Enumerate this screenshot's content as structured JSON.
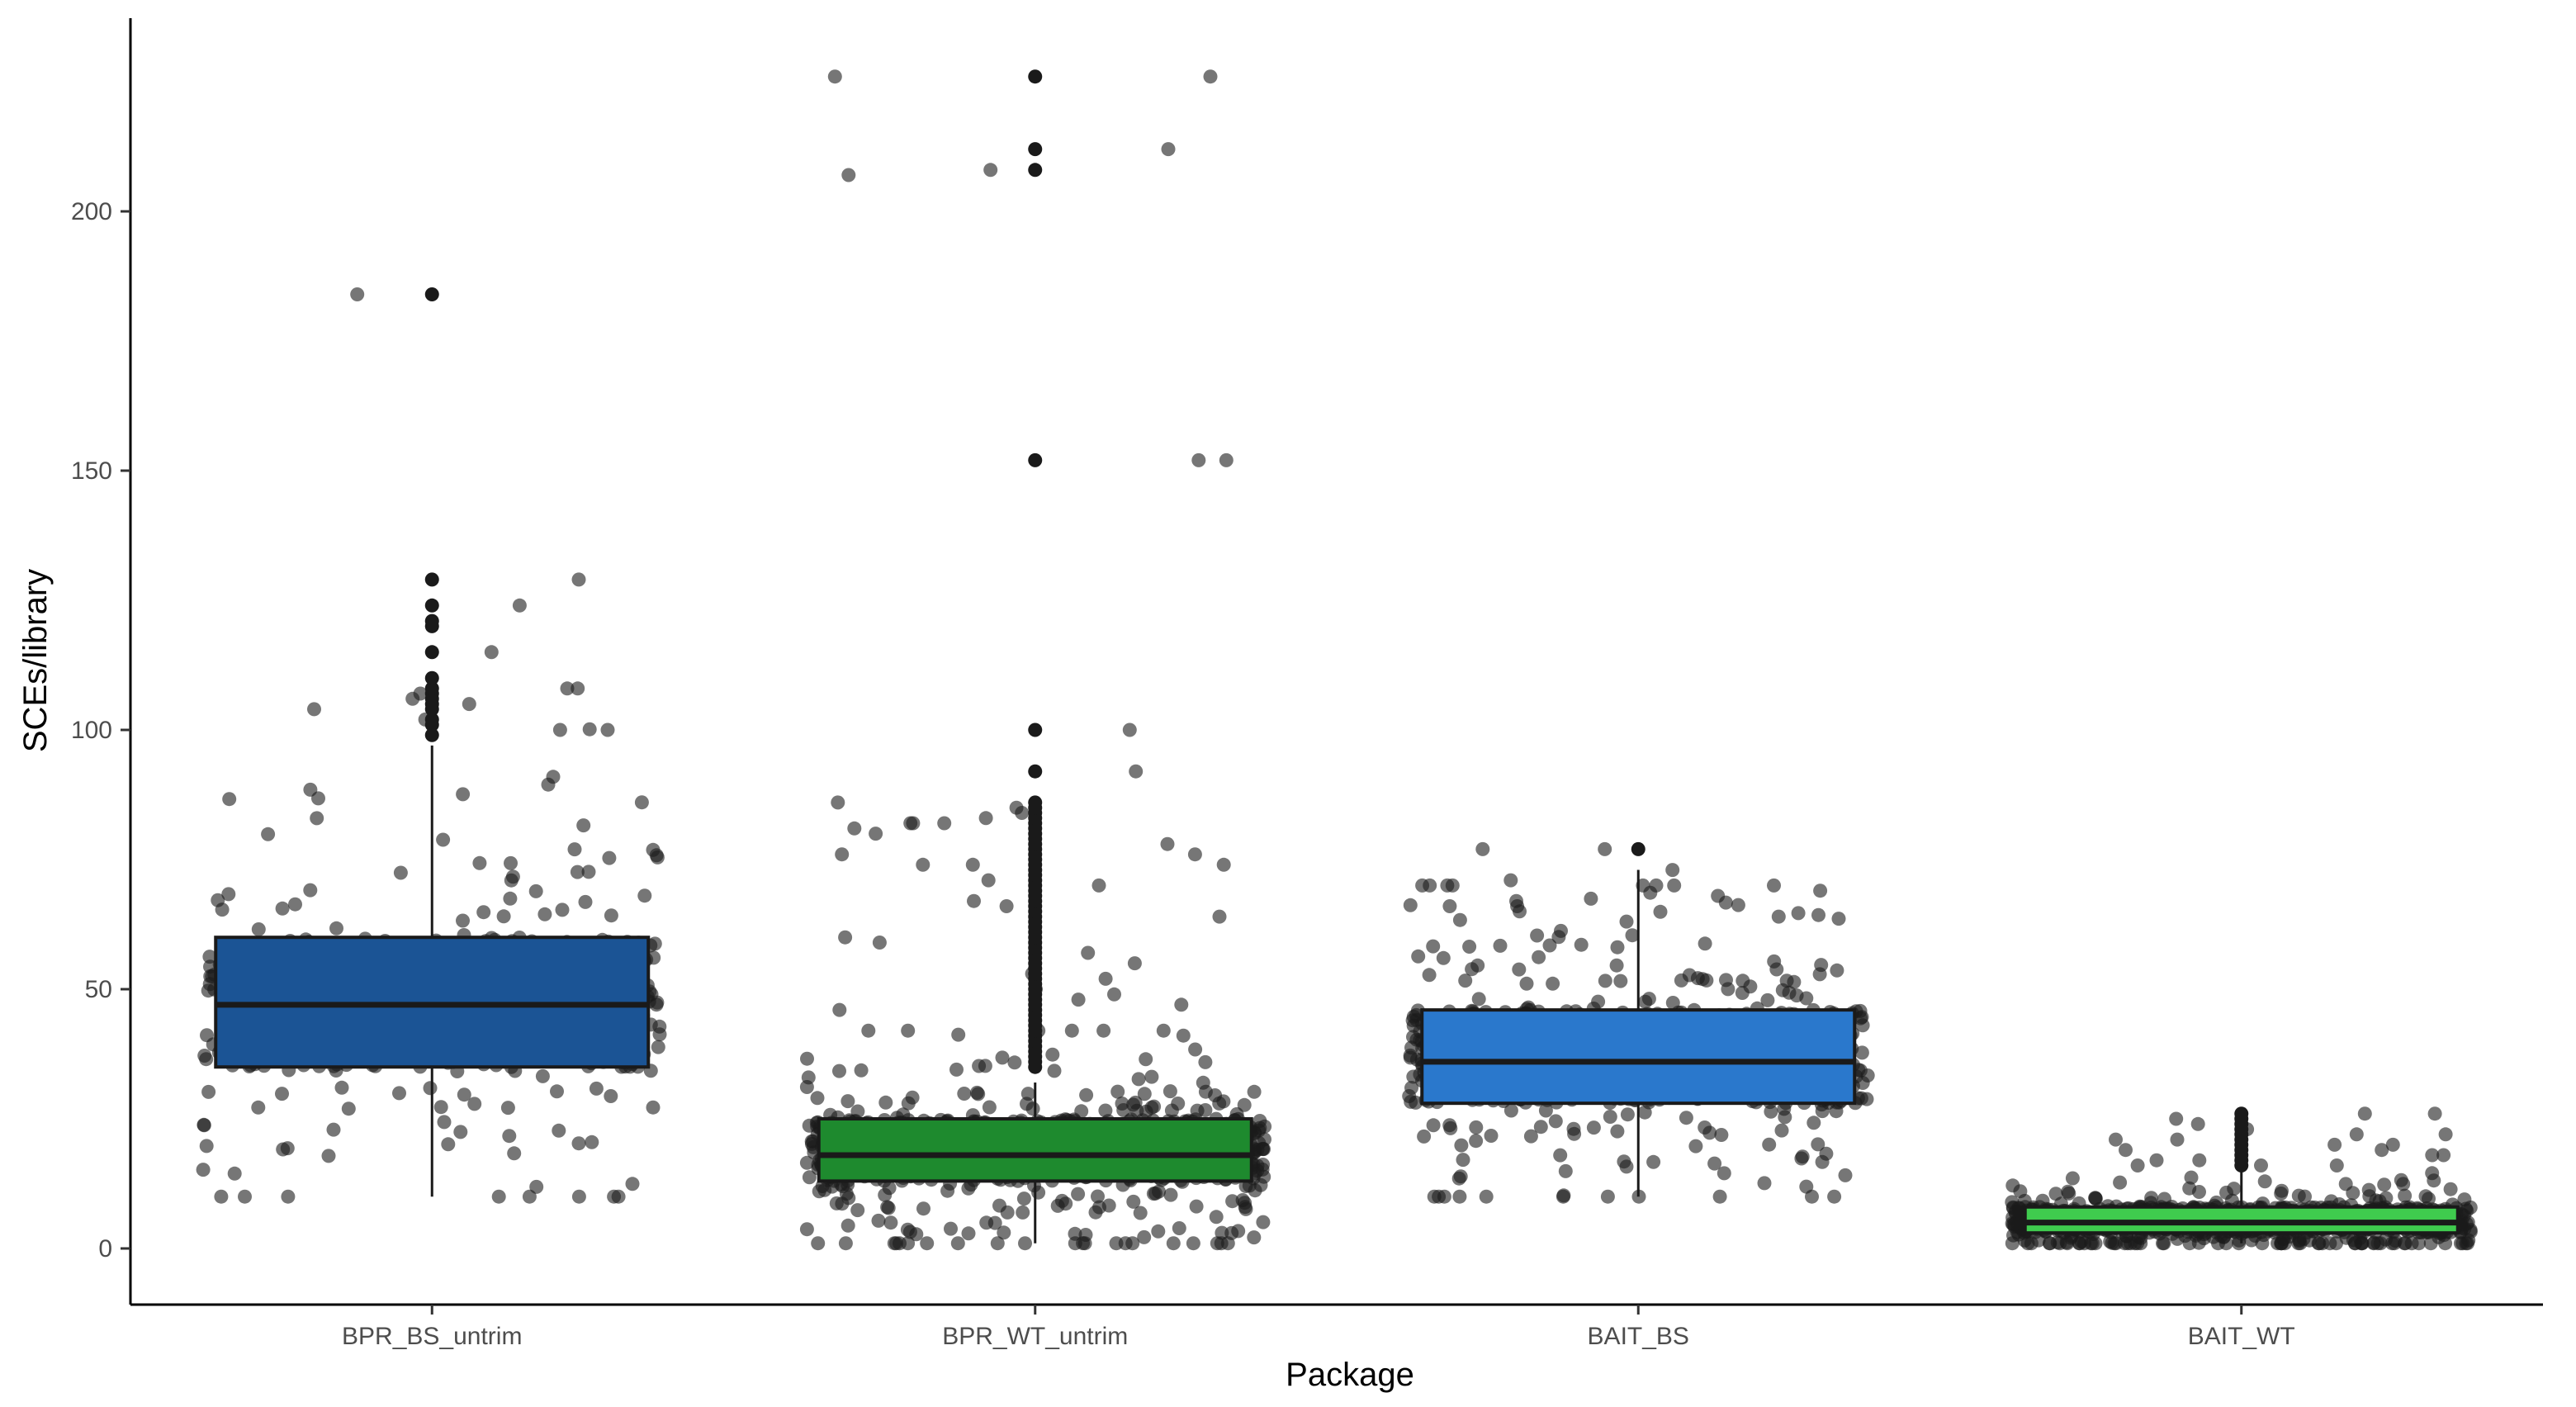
{
  "chart_data": {
    "type": "boxplot",
    "title": "",
    "xlabel": "Package",
    "ylabel": "SCEs/library",
    "ylim": [
      -10,
      232
    ],
    "yticks": [
      0,
      50,
      100,
      150,
      200
    ],
    "grid": false,
    "legend": "none",
    "categories": [
      "BPR_BS_untrim",
      "BPR_WT_untrim",
      "BAIT_BS",
      "BAIT_WT"
    ],
    "colors": [
      "#1B5495",
      "#1E8A2E",
      "#2A78CC",
      "#3FCB4E"
    ],
    "point_color": "#1a1a1a",
    "boxes": [
      {
        "category": "BPR_BS_untrim",
        "whisker_low": 10,
        "q1": 35,
        "median": 47,
        "q3": 60,
        "whisker_high": 97,
        "jitter_range": [
          10,
          110
        ],
        "jitter_count": 560,
        "outliers": [
          99,
          101,
          102,
          104,
          105,
          106,
          107,
          108,
          110,
          115,
          120,
          121,
          124,
          129,
          184
        ],
        "extra_points": [
          184,
          129,
          124,
          115,
          108,
          108,
          107,
          106,
          105,
          104,
          102,
          100,
          100
        ]
      },
      {
        "category": "BPR_WT_untrim",
        "whisker_low": 1,
        "q1": 13,
        "median": 18,
        "q3": 25,
        "whisker_high": 32,
        "jitter_range": [
          1,
          42
        ],
        "jitter_count": 850,
        "outliers": [
          35,
          36,
          37,
          38,
          39,
          40,
          41,
          42,
          43,
          44,
          45,
          46,
          47,
          48,
          49,
          50,
          51,
          52,
          53,
          54,
          55,
          56,
          57,
          58,
          59,
          60,
          61,
          62,
          63,
          64,
          65,
          66,
          67,
          68,
          69,
          70,
          71,
          72,
          73,
          74,
          75,
          76,
          77,
          78,
          79,
          80,
          81,
          82,
          83,
          84,
          85,
          86,
          92,
          100,
          152,
          208,
          212,
          226
        ],
        "extra_points": [
          226,
          226,
          212,
          208,
          207,
          152,
          152,
          100,
          92,
          86,
          85,
          84,
          83,
          82,
          82,
          82,
          81,
          80,
          78,
          76,
          76,
          74,
          74,
          74,
          71,
          70,
          67,
          66,
          64,
          60,
          59,
          57,
          55,
          53,
          52,
          50,
          49,
          48,
          47,
          46
        ]
      },
      {
        "category": "BAIT_BS",
        "whisker_low": 10,
        "q1": 28,
        "median": 36,
        "q3": 46,
        "whisker_high": 73,
        "jitter_range": [
          10,
          70
        ],
        "jitter_count": 780,
        "outliers": [
          77
        ],
        "extra_points": [
          77,
          77,
          73,
          71,
          70,
          69,
          68,
          67,
          66,
          65,
          64
        ]
      },
      {
        "category": "BAIT_WT",
        "whisker_low": 1,
        "q1": 3,
        "median": 5,
        "q3": 8,
        "whisker_high": 15,
        "jitter_range": [
          1,
          16
        ],
        "jitter_count": 900,
        "outliers": [
          16,
          17,
          18,
          19,
          20,
          21,
          22,
          23,
          24,
          25,
          26
        ],
        "extra_points": [
          26,
          26,
          25,
          24,
          23,
          22,
          22,
          21,
          21,
          20,
          20,
          19,
          19,
          18,
          18,
          17,
          17,
          16
        ]
      }
    ]
  }
}
